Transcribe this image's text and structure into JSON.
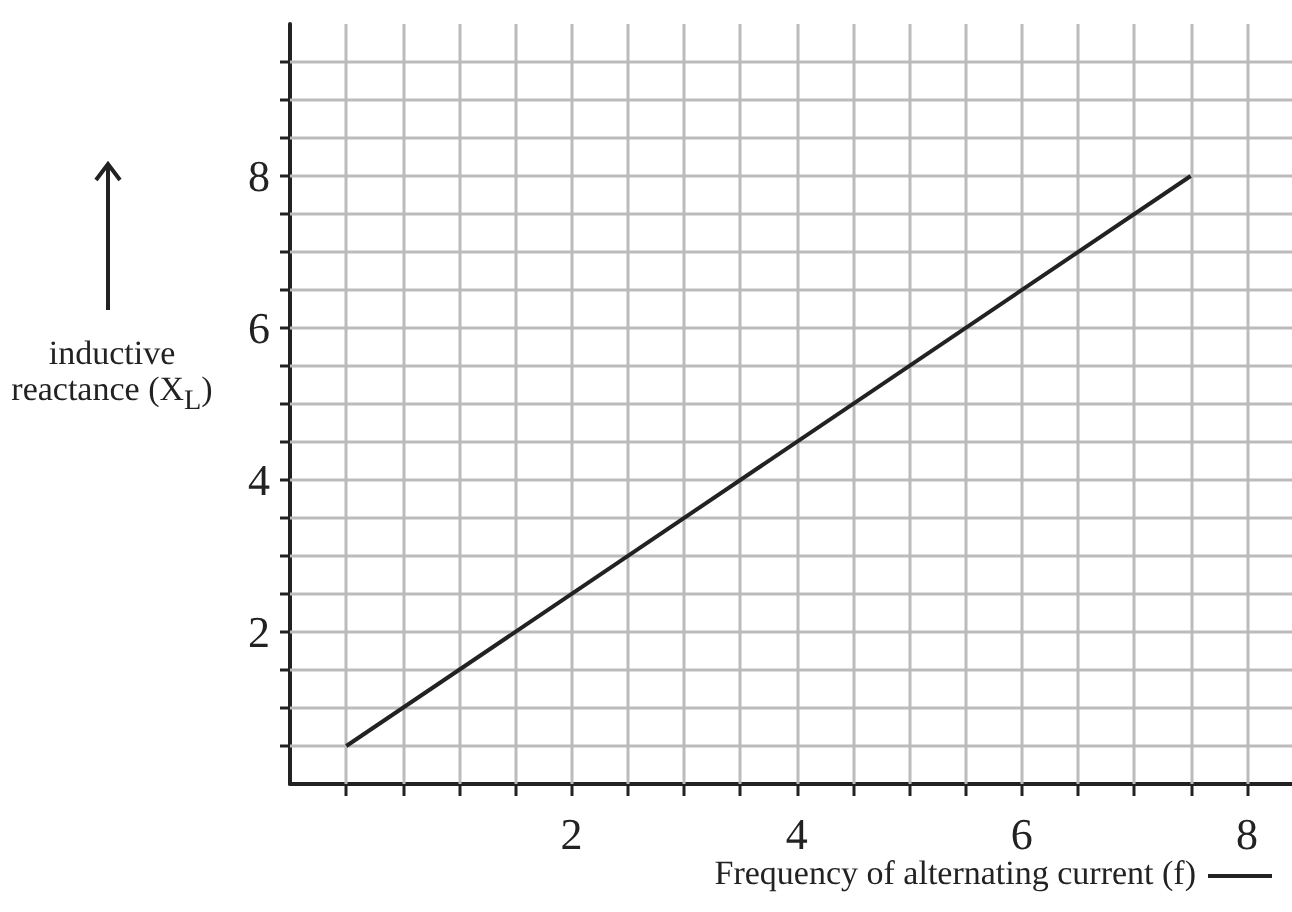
{
  "chart_data": {
    "type": "line",
    "xlabel": "Frequency of alternating current (f)",
    "ylabel": "inductive reactance (X$_{L}$)",
    "series": [
      {
        "color": "#222222",
        "x": [
          0,
          7.5
        ],
        "values": [
          0.5,
          8
        ]
      }
    ],
    "xlim": [
      -0.5,
      8.4
    ],
    "ylim": [
      0,
      10
    ],
    "xticks": [
      {
        "value": 0,
        "label": null
      },
      {
        "value": 0.5,
        "label": null
      },
      {
        "value": 1,
        "label": null
      },
      {
        "value": 1.5,
        "label": null
      },
      2,
      {
        "value": 2.5,
        "label": null
      },
      {
        "value": 3,
        "label": null
      },
      {
        "value": 3.5,
        "label": null
      },
      4,
      {
        "value": 4.5,
        "label": null
      },
      {
        "value": 5,
        "label": null
      },
      {
        "value": 5.5,
        "label": null
      },
      6,
      {
        "value": 6.5,
        "label": null
      },
      {
        "value": 7,
        "label": null
      },
      {
        "value": 7.5,
        "label": null
      },
      8
    ],
    "yticks": [
      {
        "value": 0.5,
        "label": null
      },
      {
        "value": 1,
        "label": null
      },
      {
        "value": 1.5,
        "label": null
      },
      2,
      {
        "value": 2.5,
        "label": null
      },
      {
        "value": 3,
        "label": null
      },
      {
        "value": 3.5,
        "label": null
      },
      4,
      {
        "value": 4.5,
        "label": null
      },
      {
        "value": 5,
        "label": null
      },
      {
        "value": 5.5,
        "label": null
      },
      6,
      {
        "value": 6.5,
        "label": null
      },
      {
        "value": 7,
        "label": null
      },
      {
        "value": 7.5,
        "label": null
      },
      8,
      {
        "value": 8.5,
        "label": null
      },
      {
        "value": 9,
        "label": null
      },
      {
        "value": 9.5,
        "label": null
      }
    ],
    "grid": true,
    "marker": "none",
    "line_style": "solid"
  }
}
